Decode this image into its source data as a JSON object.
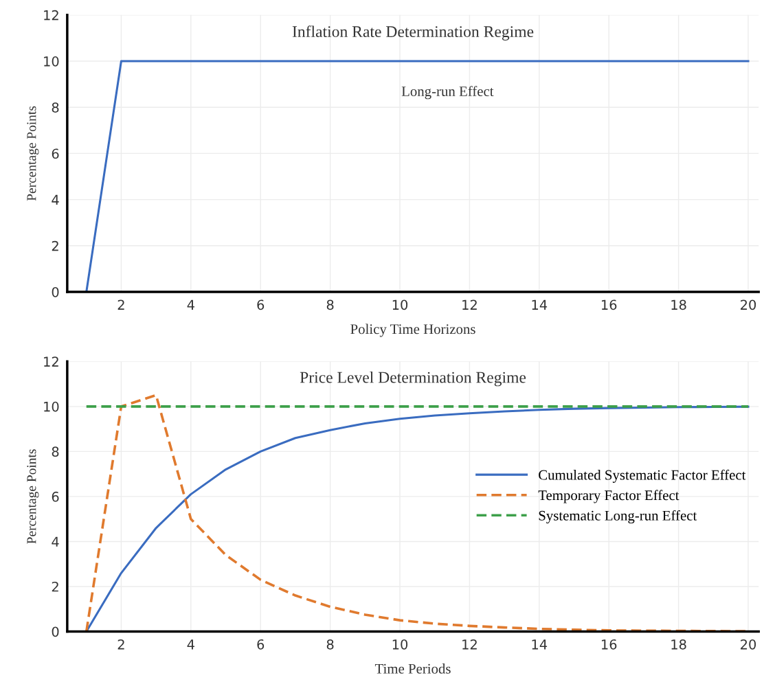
{
  "chart_data": [
    {
      "type": "line",
      "title": "Inflation Rate Determination Regime",
      "xlabel": "Policy Time Horizons",
      "ylabel": "Percentage Points",
      "annotations": [
        "Long-run Effect"
      ],
      "x": [
        1,
        2,
        3,
        4,
        5,
        6,
        7,
        8,
        9,
        10,
        11,
        12,
        13,
        14,
        15,
        16,
        17,
        18,
        19,
        20
      ],
      "series": [
        {
          "color": "#3a6cc0",
          "line_style": "solid",
          "values": [
            0,
            10,
            10,
            10,
            10,
            10,
            10,
            10,
            10,
            10,
            10,
            10,
            10,
            10,
            10,
            10,
            10,
            10,
            10,
            10
          ]
        }
      ],
      "xlim": [
        0.45,
        20.3
      ],
      "ylim": [
        0,
        12
      ],
      "xticks": [
        2,
        4,
        6,
        8,
        10,
        12,
        14,
        16,
        18,
        20
      ],
      "yticks": [
        0,
        2,
        4,
        6,
        8,
        10,
        12
      ],
      "grid": true,
      "legend": false,
      "marker": "none"
    },
    {
      "type": "line",
      "title": "Price Level Determination Regime",
      "xlabel": "Time Periods",
      "ylabel": "Percentage Points",
      "x": [
        1,
        2,
        3,
        4,
        5,
        6,
        7,
        8,
        9,
        10,
        11,
        12,
        13,
        14,
        15,
        16,
        17,
        18,
        19,
        20
      ],
      "series": [
        {
          "name": "Cumulated Systematic Factor Effect",
          "color": "#3a6cc0",
          "line_style": "solid",
          "values": [
            0,
            2.6,
            4.6,
            6.1,
            7.2,
            8.0,
            8.6,
            8.95,
            9.25,
            9.45,
            9.6,
            9.7,
            9.78,
            9.85,
            9.9,
            9.93,
            9.95,
            9.97,
            9.98,
            9.99
          ]
        },
        {
          "name": "Temporary Factor Effect",
          "color": "#e07a2e",
          "line_style": "dashed",
          "values": [
            0,
            10,
            10.5,
            5.0,
            3.4,
            2.3,
            1.6,
            1.1,
            0.75,
            0.5,
            0.35,
            0.25,
            0.18,
            0.12,
            0.08,
            0.05,
            0.04,
            0.03,
            0.02,
            0.01
          ]
        },
        {
          "name": "Systematic Long-run Effect",
          "color": "#3da04a",
          "line_style": "dashed",
          "values": [
            10,
            10,
            10,
            10,
            10,
            10,
            10,
            10,
            10,
            10,
            10,
            10,
            10,
            10,
            10,
            10,
            10,
            10,
            10,
            10
          ]
        }
      ],
      "xlim": [
        0.45,
        20.3
      ],
      "ylim": [
        0,
        12
      ],
      "xticks": [
        2,
        4,
        6,
        8,
        10,
        12,
        14,
        16,
        18,
        20
      ],
      "yticks": [
        0,
        2,
        4,
        6,
        8,
        10,
        12
      ],
      "grid": true,
      "legend": "right",
      "marker": "none"
    }
  ]
}
